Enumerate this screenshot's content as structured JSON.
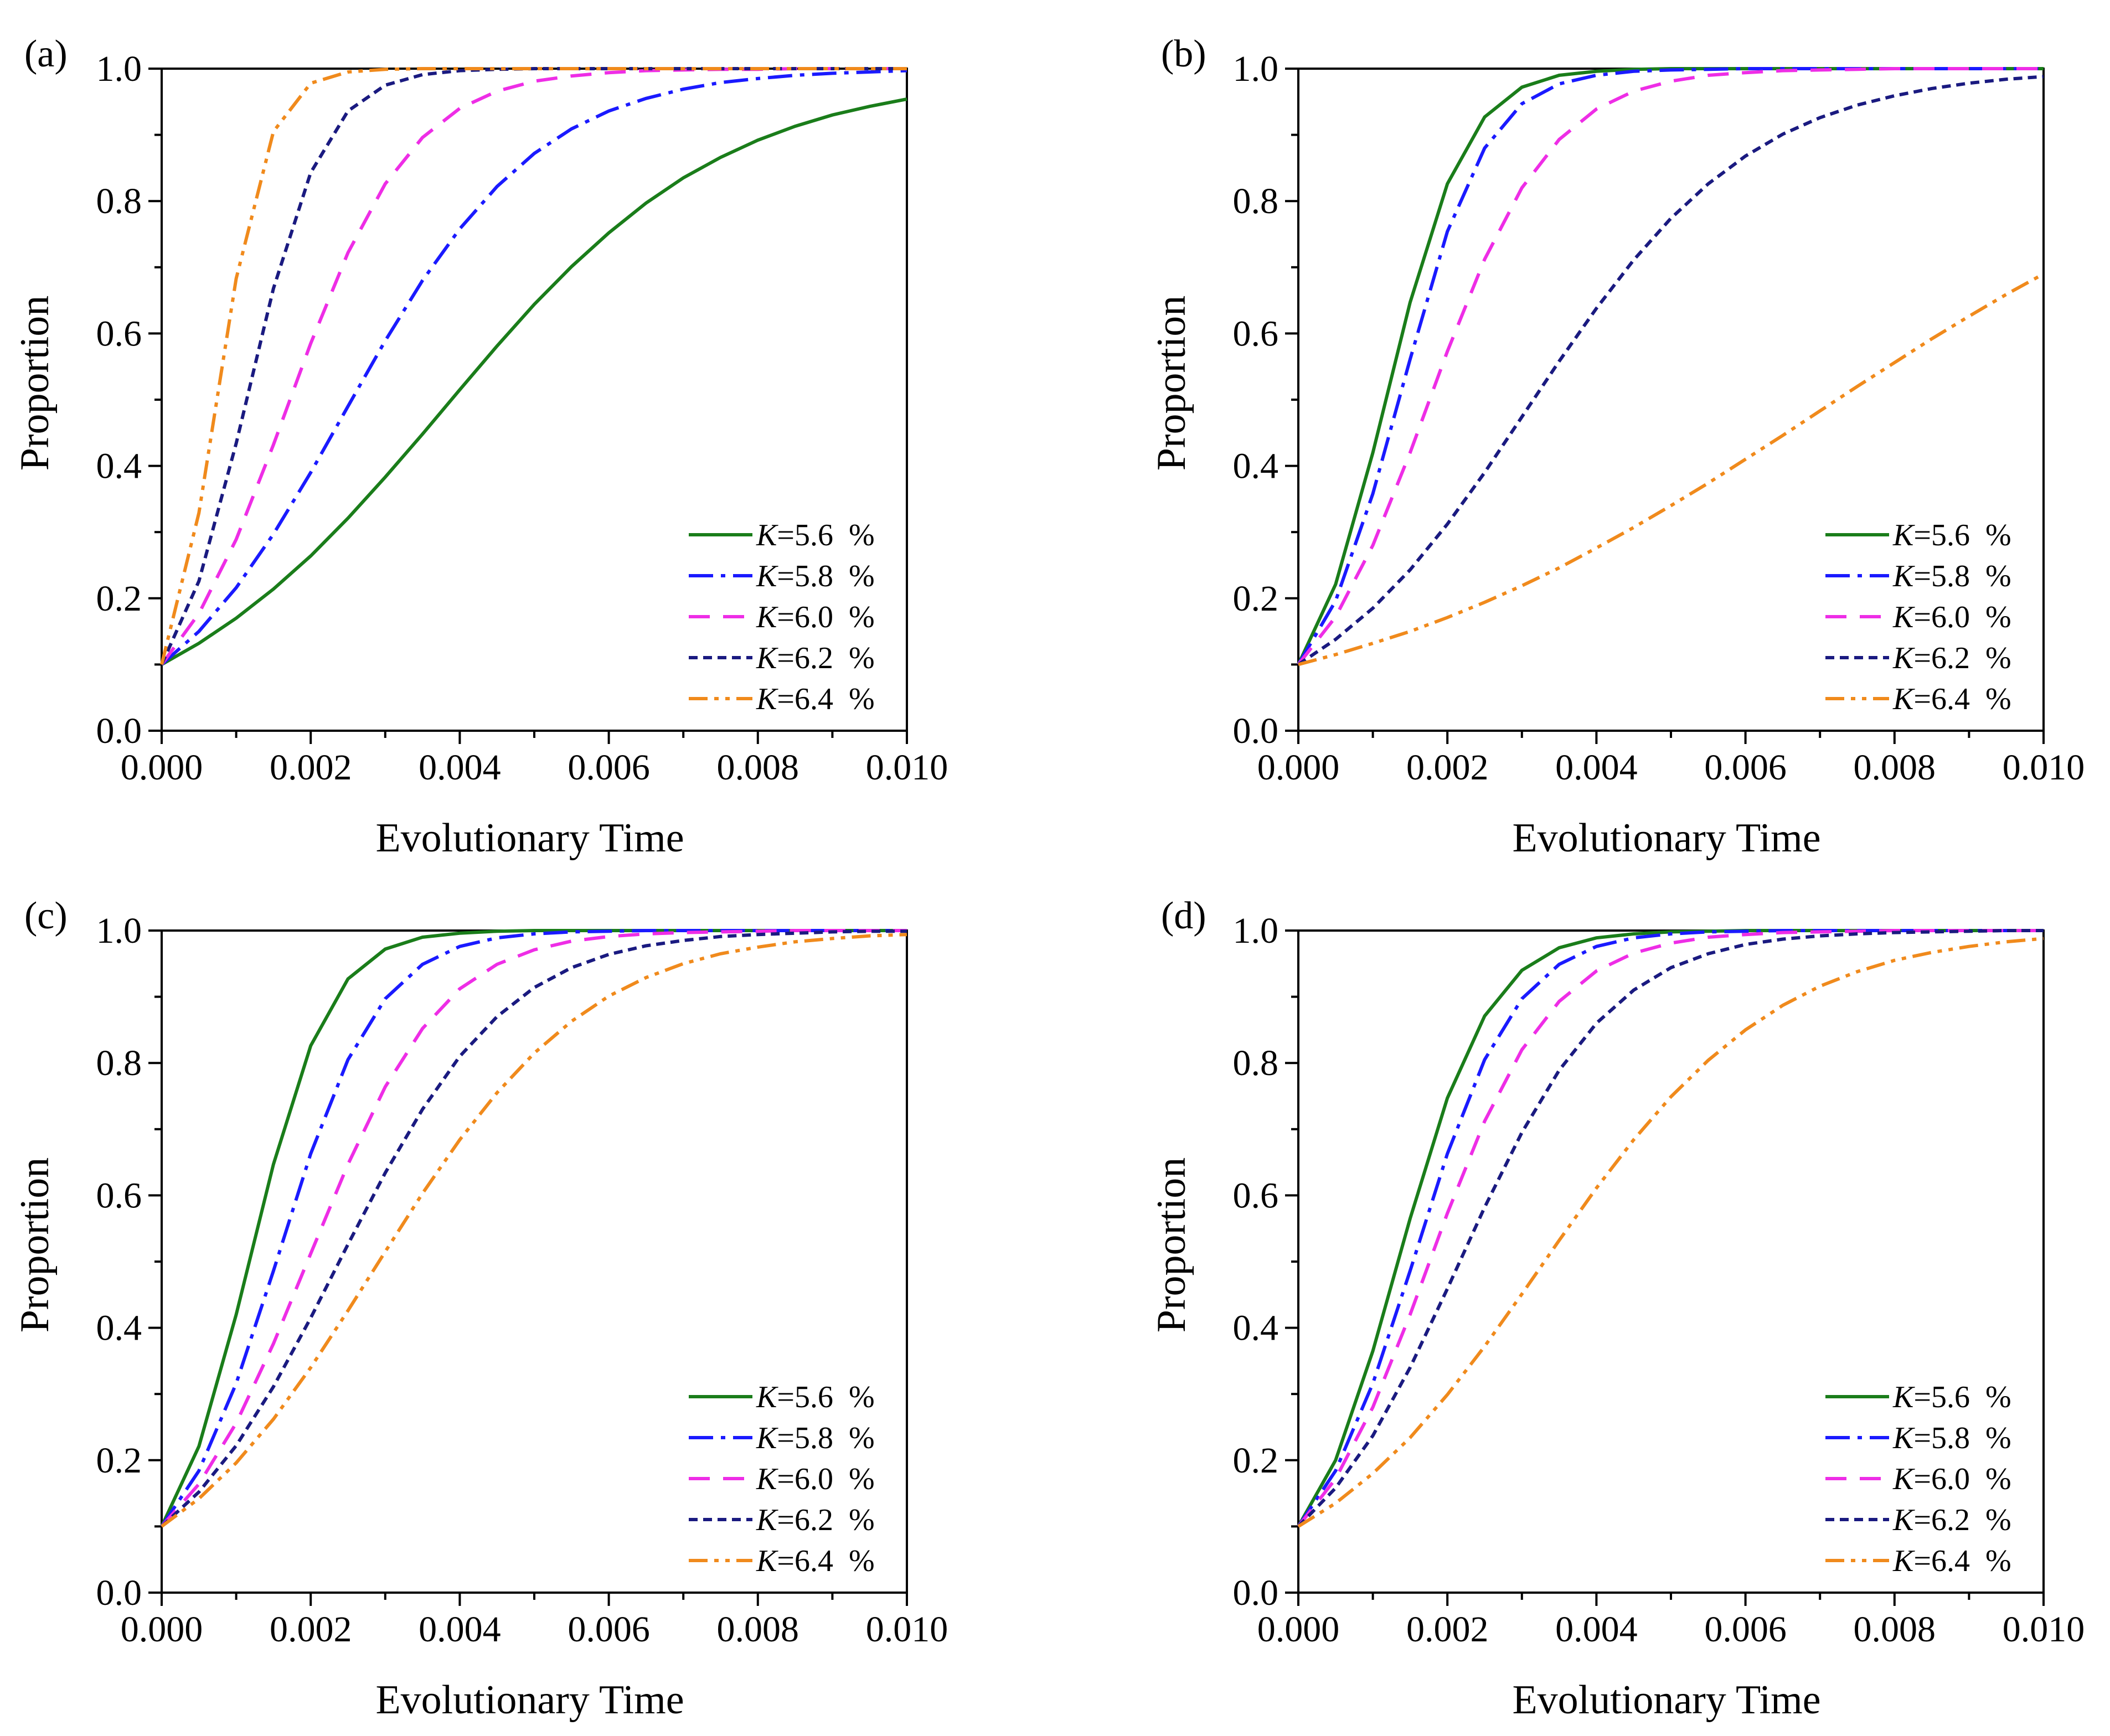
{
  "chart_data": [
    {
      "panel_label": "(a)",
      "type": "line",
      "xlabel": "Evolutionary Time",
      "ylabel": "Proportion",
      "xlim": [
        0,
        0.01
      ],
      "ylim": [
        0,
        1
      ],
      "xticks": [
        "0.000",
        "0.002",
        "0.004",
        "0.006",
        "0.008",
        "0.010"
      ],
      "yticks": [
        "0.0",
        "0.2",
        "0.4",
        "0.6",
        "0.8",
        "1.0"
      ],
      "legend_position": "bottom-right",
      "x": [
        0,
        0.0005,
        0.001,
        0.0015,
        0.002,
        0.0025,
        0.003,
        0.0035,
        0.004,
        0.0045,
        0.005,
        0.0055,
        0.006,
        0.0065,
        0.007,
        0.0075,
        0.008,
        0.0085,
        0.009,
        0.0095,
        0.01
      ],
      "series": [
        {
          "name_prefix": "K",
          "name_suffix": "=5.6  %",
          "color": "#1a7d1a",
          "dash": "solid",
          "values": [
            0.1,
            0.132,
            0.17,
            0.214,
            0.264,
            0.321,
            0.383,
            0.448,
            0.515,
            0.581,
            0.644,
            0.701,
            0.752,
            0.797,
            0.835,
            0.866,
            0.892,
            0.913,
            0.93,
            0.943,
            0.954
          ]
        },
        {
          "name_prefix": "K",
          "name_suffix": "=5.8  %",
          "color": "#1a1aff",
          "dash": "dashdot",
          "values": [
            0.1,
            0.15,
            0.216,
            0.297,
            0.39,
            0.49,
            0.589,
            0.68,
            0.758,
            0.822,
            0.872,
            0.909,
            0.936,
            0.955,
            0.969,
            0.979,
            0.985,
            0.99,
            0.993,
            0.995,
            0.997
          ]
        },
        {
          "name_prefix": "K",
          "name_suffix": "=6.0  %",
          "color": "#ee2de6",
          "dash": "dash",
          "values": [
            0.1,
            0.177,
            0.289,
            0.432,
            0.585,
            0.722,
            0.826,
            0.896,
            0.94,
            0.966,
            0.981,
            0.989,
            0.994,
            0.997,
            0.998,
            0.999,
            0.999,
            1.0,
            1.0,
            1.0,
            1.0
          ]
        },
        {
          "name_prefix": "K",
          "name_suffix": "=6.2  %",
          "color": "#1a1a80",
          "dash": "shortdash",
          "values": [
            0.1,
            0.226,
            0.434,
            0.668,
            0.843,
            0.936,
            0.975,
            0.991,
            0.997,
            0.999,
            1.0,
            1.0,
            1.0,
            1.0,
            1.0,
            1.0,
            1.0,
            1.0,
            1.0,
            1.0,
            1.0
          ]
        },
        {
          "name_prefix": "K",
          "name_suffix": "=6.4  %",
          "color": "#f08a1c",
          "dash": "dashdotdot",
          "values": [
            0.1,
            0.329,
            0.683,
            0.905,
            0.978,
            0.995,
            0.999,
            1.0,
            1.0,
            1.0,
            1.0,
            1.0,
            1.0,
            1.0,
            1.0,
            1.0,
            1.0,
            1.0,
            1.0,
            1.0,
            1.0
          ]
        }
      ]
    },
    {
      "panel_label": "(b)",
      "type": "line",
      "xlabel": "Evolutionary Time",
      "ylabel": "Proportion",
      "xlim": [
        0,
        0.01
      ],
      "ylim": [
        0,
        1
      ],
      "xticks": [
        "0.000",
        "0.002",
        "0.004",
        "0.006",
        "0.008",
        "0.010"
      ],
      "yticks": [
        "0.0",
        "0.2",
        "0.4",
        "0.6",
        "0.8",
        "1.0"
      ],
      "legend_position": "bottom-right",
      "x": [
        0,
        0.0005,
        0.001,
        0.0015,
        0.002,
        0.0025,
        0.003,
        0.0035,
        0.004,
        0.0045,
        0.005,
        0.0055,
        0.006,
        0.0065,
        0.007,
        0.0075,
        0.008,
        0.0085,
        0.009,
        0.0095,
        0.01
      ],
      "series": [
        {
          "name_prefix": "K",
          "name_suffix": "=5.6  %",
          "color": "#1a7d1a",
          "dash": "solid",
          "values": [
            0.1,
            0.221,
            0.42,
            0.647,
            0.826,
            0.927,
            0.972,
            0.99,
            0.996,
            0.999,
            1.0,
            1.0,
            1.0,
            1.0,
            1.0,
            1.0,
            1.0,
            1.0,
            1.0,
            1.0,
            1.0
          ]
        },
        {
          "name_prefix": "K",
          "name_suffix": "=5.8  %",
          "color": "#1a1aff",
          "dash": "dashdot",
          "values": [
            0.1,
            0.196,
            0.358,
            0.561,
            0.754,
            0.88,
            0.947,
            0.977,
            0.99,
            0.996,
            0.998,
            0.999,
            1.0,
            1.0,
            1.0,
            1.0,
            1.0,
            1.0,
            1.0,
            1.0,
            1.0
          ]
        },
        {
          "name_prefix": "K",
          "name_suffix": "=6.0  %",
          "color": "#ee2de6",
          "dash": "dash",
          "values": [
            0.1,
            0.172,
            0.28,
            0.42,
            0.573,
            0.712,
            0.82,
            0.893,
            0.939,
            0.966,
            0.981,
            0.99,
            0.994,
            0.997,
            0.998,
            0.999,
            1.0,
            1.0,
            1.0,
            1.0,
            1.0
          ]
        },
        {
          "name_prefix": "K",
          "name_suffix": "=6.2  %",
          "color": "#1a1a80",
          "dash": "shortdash",
          "values": [
            0.1,
            0.138,
            0.185,
            0.243,
            0.312,
            0.39,
            0.474,
            0.558,
            0.638,
            0.711,
            0.774,
            0.826,
            0.868,
            0.901,
            0.926,
            0.945,
            0.959,
            0.97,
            0.978,
            0.984,
            0.988
          ]
        },
        {
          "name_prefix": "K",
          "name_suffix": "=6.4  %",
          "color": "#f08a1c",
          "dash": "dashdotdot",
          "values": [
            0.1,
            0.115,
            0.132,
            0.15,
            0.171,
            0.194,
            0.219,
            0.246,
            0.276,
            0.307,
            0.34,
            0.374,
            0.41,
            0.446,
            0.483,
            0.52,
            0.556,
            0.592,
            0.626,
            0.659,
            0.69
          ]
        }
      ]
    },
    {
      "panel_label": "(c)",
      "type": "line",
      "xlabel": "Evolutionary Time",
      "ylabel": "Proportion",
      "xlim": [
        0,
        0.01
      ],
      "ylim": [
        0,
        1
      ],
      "xticks": [
        "0.000",
        "0.002",
        "0.004",
        "0.006",
        "0.008",
        "0.010"
      ],
      "yticks": [
        "0.0",
        "0.2",
        "0.4",
        "0.6",
        "0.8",
        "1.0"
      ],
      "legend_position": "bottom-right",
      "x": [
        0,
        0.0005,
        0.001,
        0.0015,
        0.002,
        0.0025,
        0.003,
        0.0035,
        0.004,
        0.0045,
        0.005,
        0.0055,
        0.006,
        0.0065,
        0.007,
        0.0075,
        0.008,
        0.0085,
        0.009,
        0.0095,
        0.01
      ],
      "series": [
        {
          "name_prefix": "K",
          "name_suffix": "=5.6  %",
          "color": "#1a7d1a",
          "dash": "solid",
          "values": [
            0.1,
            0.221,
            0.42,
            0.647,
            0.826,
            0.927,
            0.972,
            0.99,
            0.996,
            0.999,
            1.0,
            1.0,
            1.0,
            1.0,
            1.0,
            1.0,
            1.0,
            1.0,
            1.0,
            1.0,
            1.0
          ]
        },
        {
          "name_prefix": "K",
          "name_suffix": "=5.8  %",
          "color": "#1a1aff",
          "dash": "dashdot",
          "values": [
            0.1,
            0.184,
            0.316,
            0.486,
            0.663,
            0.805,
            0.897,
            0.949,
            0.976,
            0.989,
            0.995,
            0.998,
            0.999,
            1.0,
            1.0,
            1.0,
            1.0,
            1.0,
            1.0,
            1.0,
            1.0
          ]
        },
        {
          "name_prefix": "K",
          "name_suffix": "=6.0  %",
          "color": "#ee2de6",
          "dash": "dash",
          "values": [
            0.1,
            0.164,
            0.256,
            0.376,
            0.512,
            0.647,
            0.764,
            0.852,
            0.912,
            0.949,
            0.971,
            0.984,
            0.991,
            0.995,
            0.997,
            0.998,
            0.999,
            1.0,
            1.0,
            1.0,
            1.0
          ]
        },
        {
          "name_prefix": "K",
          "name_suffix": "=6.2  %",
          "color": "#1a1a80",
          "dash": "shortdash",
          "values": [
            0.1,
            0.152,
            0.222,
            0.311,
            0.415,
            0.526,
            0.634,
            0.73,
            0.81,
            0.87,
            0.914,
            0.944,
            0.964,
            0.977,
            0.985,
            0.991,
            0.994,
            0.996,
            0.998,
            0.999,
            0.999
          ]
        },
        {
          "name_prefix": "K",
          "name_suffix": "=6.4  %",
          "color": "#f08a1c",
          "dash": "dashdotdot",
          "values": [
            0.1,
            0.142,
            0.196,
            0.262,
            0.34,
            0.426,
            0.515,
            0.603,
            0.684,
            0.755,
            0.815,
            0.863,
            0.901,
            0.929,
            0.95,
            0.965,
            0.975,
            0.983,
            0.988,
            0.992,
            0.994
          ]
        }
      ]
    },
    {
      "panel_label": "(d)",
      "type": "line",
      "xlabel": "Evolutionary Time",
      "ylabel": "Proportion",
      "xlim": [
        0,
        0.01
      ],
      "ylim": [
        0,
        1
      ],
      "xticks": [
        "0.000",
        "0.002",
        "0.004",
        "0.006",
        "0.008",
        "0.010"
      ],
      "yticks": [
        "0.0",
        "0.2",
        "0.4",
        "0.6",
        "0.8",
        "1.0"
      ],
      "legend_position": "bottom-right",
      "x": [
        0,
        0.0005,
        0.001,
        0.0015,
        0.002,
        0.0025,
        0.003,
        0.0035,
        0.004,
        0.0045,
        0.005,
        0.0055,
        0.006,
        0.0065,
        0.007,
        0.0075,
        0.008,
        0.0085,
        0.009,
        0.0095,
        0.01
      ],
      "series": [
        {
          "name_prefix": "K",
          "name_suffix": "=5.6  %",
          "color": "#1a7d1a",
          "dash": "solid",
          "values": [
            0.1,
            0.2,
            0.365,
            0.565,
            0.747,
            0.871,
            0.94,
            0.974,
            0.989,
            0.995,
            0.998,
            0.999,
            1.0,
            1.0,
            1.0,
            1.0,
            1.0,
            1.0,
            1.0,
            1.0,
            1.0
          ]
        },
        {
          "name_prefix": "K",
          "name_suffix": "=5.8  %",
          "color": "#1a1aff",
          "dash": "dashdot",
          "values": [
            0.1,
            0.184,
            0.316,
            0.486,
            0.663,
            0.805,
            0.897,
            0.949,
            0.976,
            0.989,
            0.995,
            0.998,
            0.999,
            1.0,
            1.0,
            1.0,
            1.0,
            1.0,
            1.0,
            1.0,
            1.0
          ]
        },
        {
          "name_prefix": "K",
          "name_suffix": "=6.0  %",
          "color": "#ee2de6",
          "dash": "dash",
          "values": [
            0.1,
            0.172,
            0.28,
            0.42,
            0.573,
            0.712,
            0.82,
            0.893,
            0.939,
            0.966,
            0.981,
            0.99,
            0.994,
            0.997,
            0.998,
            0.999,
            1.0,
            1.0,
            1.0,
            1.0,
            1.0
          ]
        },
        {
          "name_prefix": "K",
          "name_suffix": "=6.2  %",
          "color": "#1a1a80",
          "dash": "shortdash",
          "values": [
            0.1,
            0.158,
            0.237,
            0.34,
            0.459,
            0.582,
            0.695,
            0.789,
            0.86,
            0.91,
            0.944,
            0.965,
            0.979,
            0.987,
            0.992,
            0.995,
            0.997,
            0.998,
            0.999,
            1.0,
            1.0
          ]
        },
        {
          "name_prefix": "K",
          "name_suffix": "=6.4  %",
          "color": "#f08a1c",
          "dash": "dashdotdot",
          "values": [
            0.1,
            0.135,
            0.18,
            0.234,
            0.299,
            0.372,
            0.451,
            0.532,
            0.611,
            0.684,
            0.749,
            0.804,
            0.85,
            0.887,
            0.916,
            0.938,
            0.955,
            0.967,
            0.976,
            0.983,
            0.988
          ]
        }
      ]
    }
  ]
}
